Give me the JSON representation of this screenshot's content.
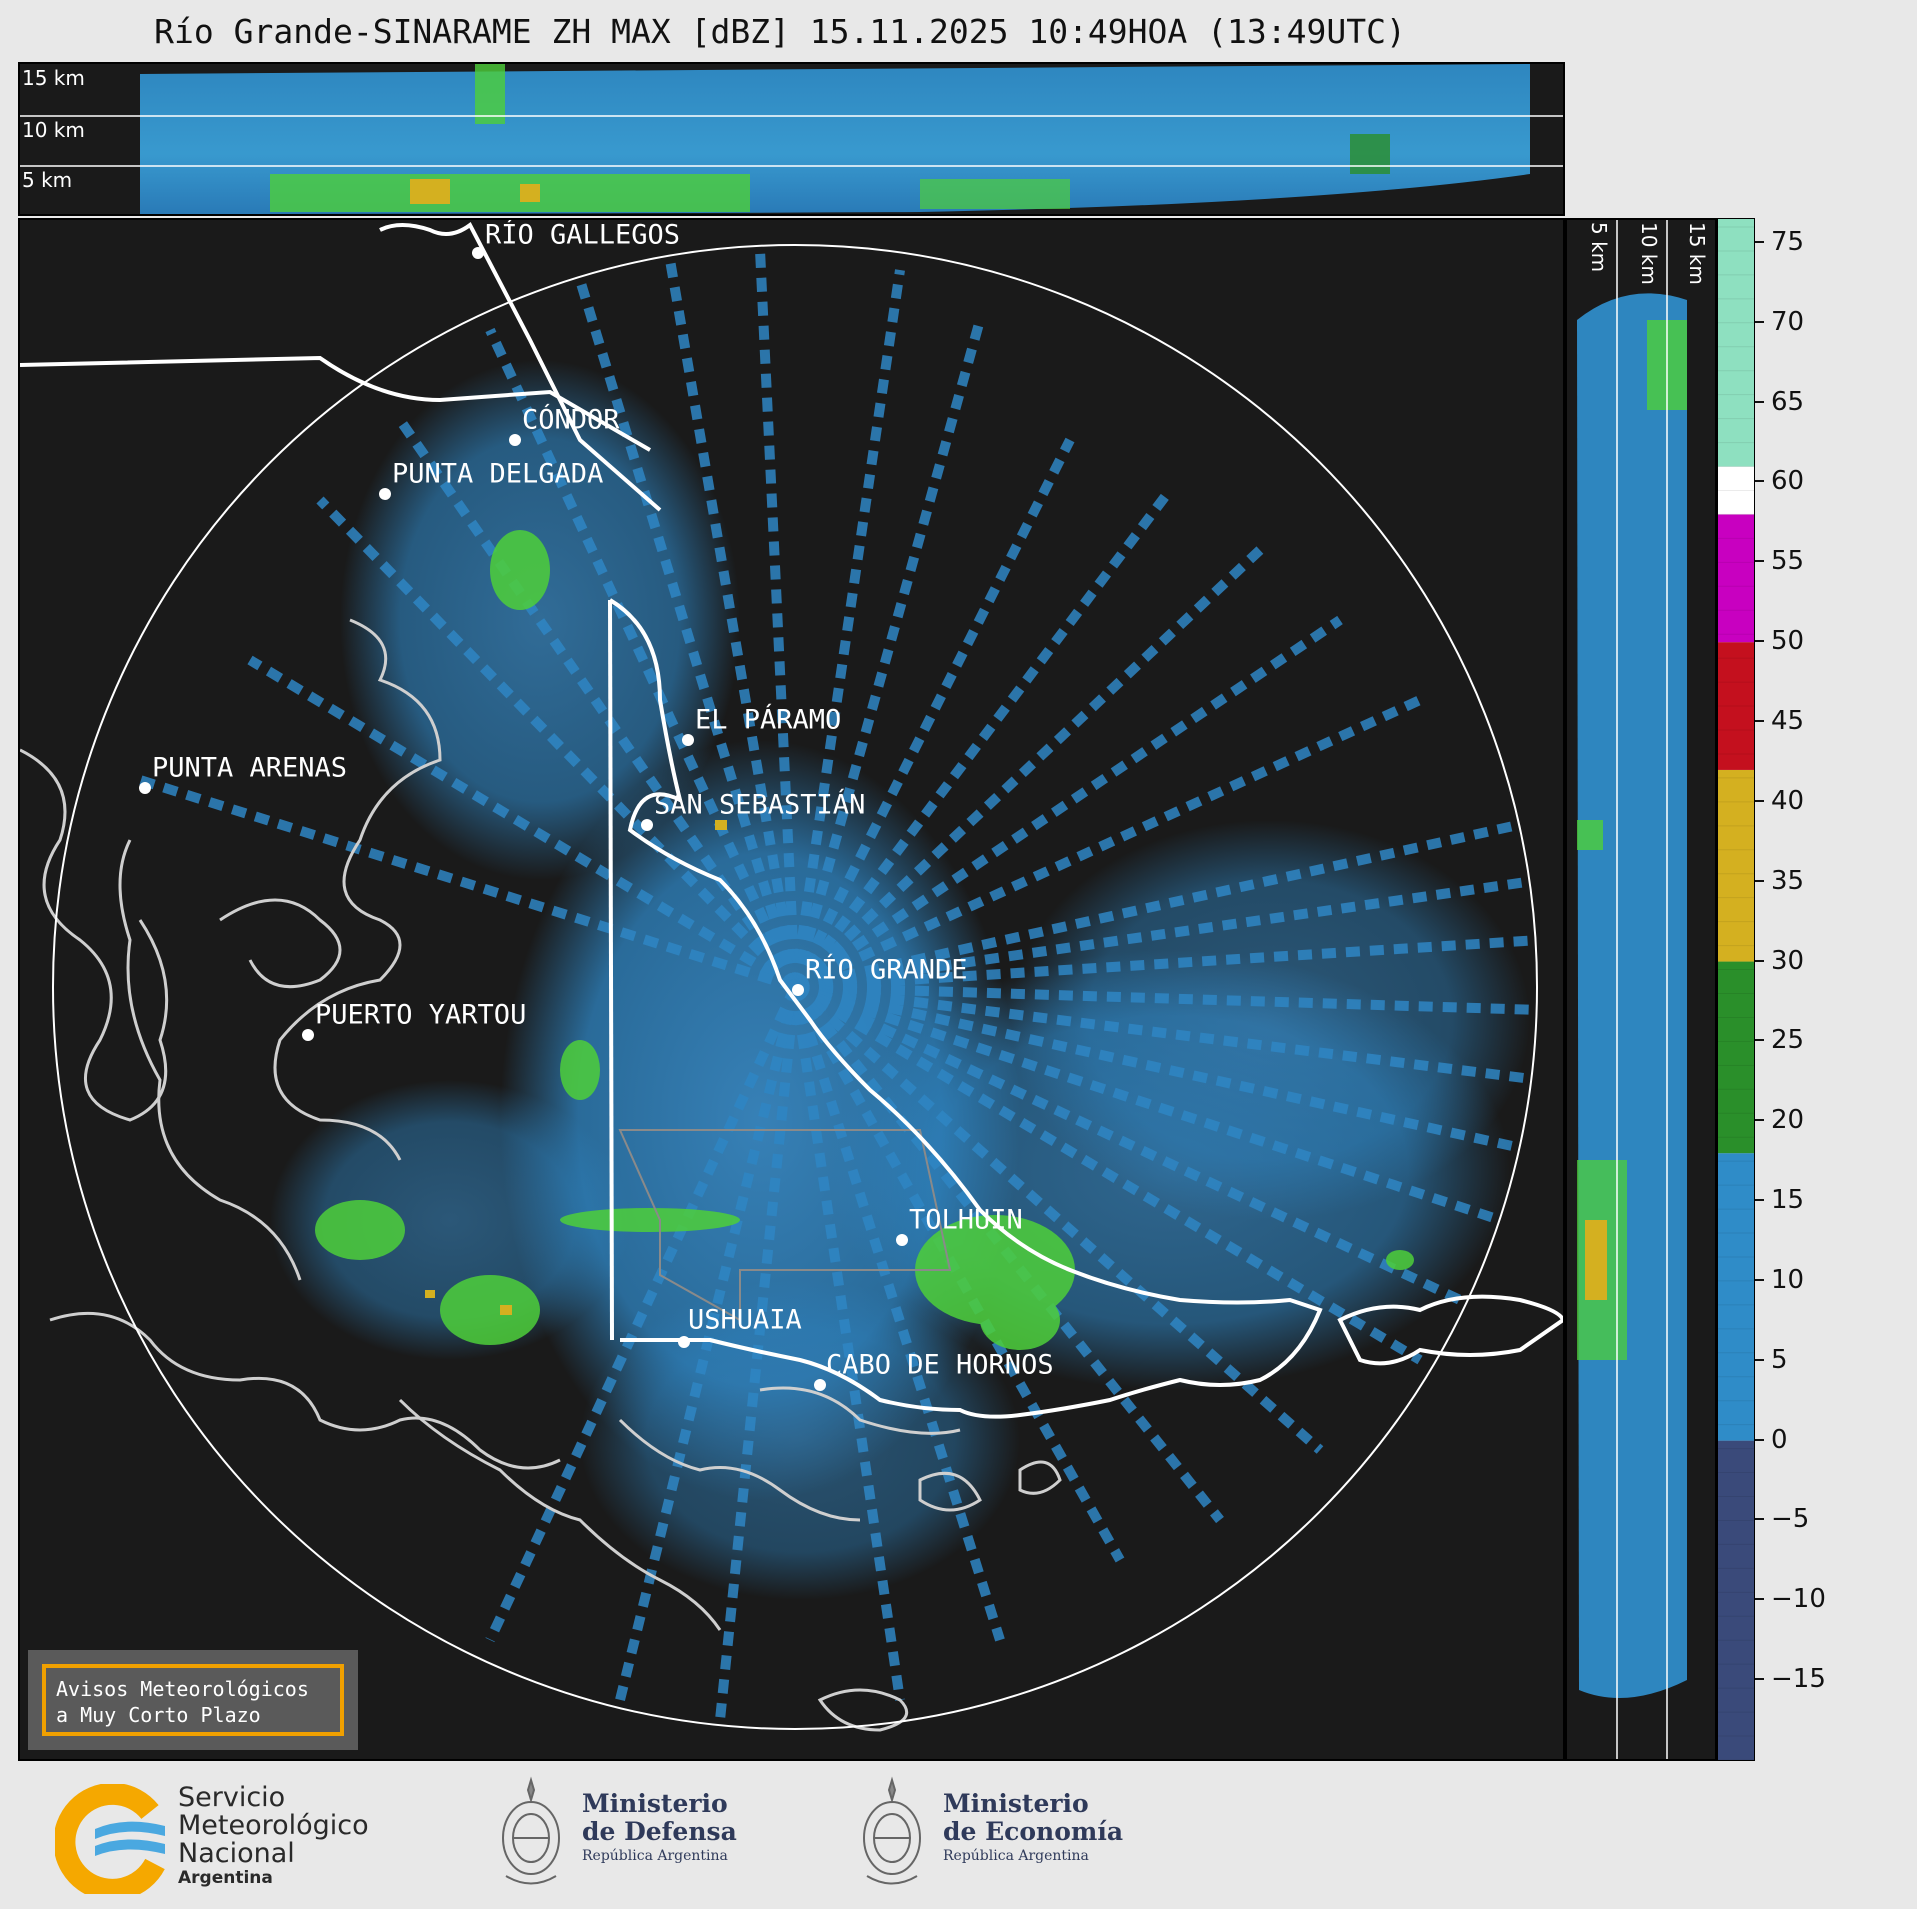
{
  "title": "Río Grande-SINARAME ZH MAX [dBZ] 15.11.2025 10:49HOA (13:49UTC)",
  "top_panel": {
    "height_labels": [
      "15 km",
      "10 km",
      "5 km"
    ]
  },
  "side_panel": {
    "height_labels": [
      "5 km",
      "10 km",
      "15 km"
    ]
  },
  "cities": [
    {
      "name": "RÍO GALLEGOS"
    },
    {
      "name": "CÓNDOR"
    },
    {
      "name": "PUNTA DELGADA"
    },
    {
      "name": "EL PÁRAMO"
    },
    {
      "name": "PUNTA ARENAS"
    },
    {
      "name": "SAN SEBASTIÁN"
    },
    {
      "name": "RÍO GRANDE"
    },
    {
      "name": "PUERTO YARTOU"
    },
    {
      "name": "TOLHUIN"
    },
    {
      "name": "USHUAIA"
    },
    {
      "name": "CABO DE HORNOS"
    }
  ],
  "colorbar": {
    "unit": "dBZ",
    "min": -20,
    "max": 76.5,
    "ticks": [
      "75",
      "70",
      "65",
      "60",
      "55",
      "50",
      "45",
      "40",
      "35",
      "30",
      "25",
      "20",
      "15",
      "10",
      "5",
      "0",
      "−5",
      "−10",
      "−15"
    ],
    "tick_values": [
      75,
      70,
      65,
      60,
      55,
      50,
      45,
      40,
      35,
      30,
      25,
      20,
      15,
      10,
      5,
      0,
      -5,
      -10,
      -15
    ],
    "bands": [
      {
        "from": -20,
        "to": 0,
        "color": "#3a4a7a"
      },
      {
        "from": 0,
        "to": 18,
        "color": "#2f8cc8"
      },
      {
        "from": 18,
        "to": 30,
        "color": "#2a8f2a"
      },
      {
        "from": 30,
        "to": 42,
        "color": "#d4b020"
      },
      {
        "from": 42,
        "to": 50,
        "color": "#c4101e"
      },
      {
        "from": 50,
        "to": 58,
        "color": "#c800c0"
      },
      {
        "from": 58,
        "to": 61,
        "color": "#ffffff"
      },
      {
        "from": 61,
        "to": 76.5,
        "color": "#8ee0c0"
      }
    ]
  },
  "warning_box": {
    "line1": "Avisos Meteorológicos",
    "line2": "a Muy Corto Plazo"
  },
  "footer": {
    "smn": {
      "line1": "Servicio",
      "line2": "Meteorológico",
      "line3": "Nacional",
      "line4": "Argentina"
    },
    "defensa": {
      "line1": "Ministerio",
      "line2": "de Defensa",
      "line3": "República Argentina"
    },
    "economia": {
      "line1": "Ministerio",
      "line2": "de Economía",
      "line3": "República Argentina"
    }
  },
  "colors": {
    "background": "#1a1a1a",
    "accent": "#f0a000",
    "echo_blue": "#2f8cc8",
    "echo_green": "#4ecf3a"
  },
  "icons": [
    "smn-logo-icon",
    "argentina-coat-of-arms-icon"
  ]
}
